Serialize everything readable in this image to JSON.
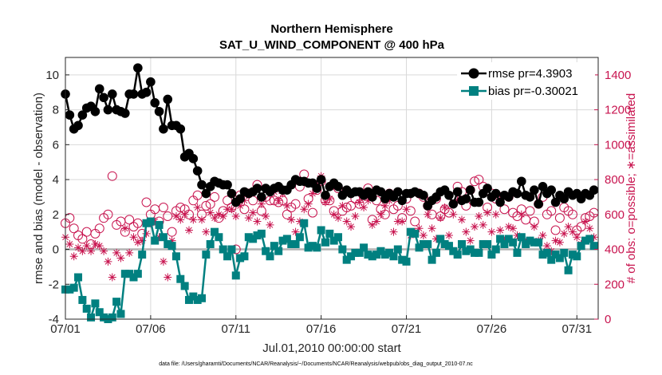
{
  "chart_data": {
    "type": "line",
    "title": "Northern Hemisphere",
    "subtitle": "SAT_U_WIND_COMPONENT @ 400 hPa",
    "xlabel": "Jul.01,2010 00:00:00 start",
    "ylabel_left": "rmse and bias (model - observation)",
    "ylabel_right": "# of obs: o=possible; ∗=assimilated",
    "footnote": "data file: /Users/gharamti/Documents/NCAR/Reanalysis/~/Documents/NCAR/Reanalysis/webpub/obs_diag_output_2010-07.nc",
    "x_tick_labels": [
      "07/01",
      "07/06",
      "07/11",
      "07/16",
      "07/21",
      "07/26",
      "07/31"
    ],
    "x_tick_days": [
      1,
      6,
      11,
      16,
      21,
      26,
      31
    ],
    "xlim": [
      1,
      32.25
    ],
    "ylim_left": [
      -4,
      11
    ],
    "left_ticks": [
      -4,
      -2,
      0,
      2,
      4,
      6,
      8,
      10
    ],
    "ylim_right": [
      0,
      1500
    ],
    "right_ticks": [
      0,
      200,
      400,
      600,
      800,
      1000,
      1200,
      1400
    ],
    "legend": [
      {
        "label": "rmse pr=4.3903",
        "series": "rmse"
      },
      {
        "label": "bias pr=-0.30021",
        "series": "bias"
      }
    ],
    "legend_placement": "top-right",
    "grid": true,
    "colors": {
      "rmse": "#000000",
      "bias": "#008080",
      "obs": "#c8144f",
      "zero_line": "#b3b3b3"
    },
    "x": [
      1.0,
      1.25,
      1.5,
      1.75,
      2.0,
      2.25,
      2.5,
      2.75,
      3.0,
      3.25,
      3.5,
      3.75,
      4.0,
      4.25,
      4.5,
      4.75,
      5.0,
      5.25,
      5.5,
      5.75,
      6.0,
      6.25,
      6.5,
      6.75,
      7.0,
      7.25,
      7.5,
      7.75,
      8.0,
      8.25,
      8.5,
      8.75,
      9.0,
      9.25,
      9.5,
      9.75,
      10.0,
      10.25,
      10.5,
      10.75,
      11.0,
      11.25,
      11.5,
      11.75,
      12.0,
      12.25,
      12.5,
      12.75,
      13.0,
      13.25,
      13.5,
      13.75,
      14.0,
      14.25,
      14.5,
      14.75,
      15.0,
      15.25,
      15.5,
      15.75,
      16.0,
      16.25,
      16.5,
      16.75,
      17.0,
      17.25,
      17.5,
      17.75,
      18.0,
      18.25,
      18.5,
      18.75,
      19.0,
      19.25,
      19.5,
      19.75,
      20.0,
      20.25,
      20.5,
      20.75,
      21.0,
      21.25,
      21.5,
      21.75,
      22.0,
      22.25,
      22.5,
      22.75,
      23.0,
      23.25,
      23.5,
      23.75,
      24.0,
      24.25,
      24.5,
      24.75,
      25.0,
      25.25,
      25.5,
      25.75,
      26.0,
      26.25,
      26.5,
      26.75,
      27.0,
      27.25,
      27.5,
      27.75,
      28.0,
      28.25,
      28.5,
      28.75,
      29.0,
      29.25,
      29.5,
      29.75,
      30.0,
      30.25,
      30.5,
      30.75,
      31.0,
      31.25,
      31.5,
      31.75,
      32.0
    ],
    "series": [
      {
        "name": "rmse",
        "axis": "left",
        "values": [
          8.9,
          7.7,
          6.9,
          7.1,
          7.7,
          8.1,
          8.2,
          7.9,
          9.2,
          8.7,
          8.0,
          8.9,
          8.0,
          7.9,
          7.8,
          8.9,
          8.9,
          10.4,
          8.9,
          9.0,
          9.6,
          8.4,
          7.9,
          6.9,
          8.6,
          7.1,
          7.1,
          6.9,
          5.3,
          5.5,
          5.2,
          4.5,
          3.7,
          3.2,
          3.6,
          3.9,
          3.8,
          3.7,
          3.7,
          3.2,
          2.7,
          2.9,
          3.3,
          3.2,
          3.3,
          3.5,
          3.0,
          3.5,
          3.3,
          3.5,
          3.6,
          3.4,
          3.4,
          3.7,
          4.0,
          3.9,
          3.9,
          3.8,
          3.8,
          3.5,
          4.0,
          3.1,
          3.6,
          3.8,
          3.6,
          3.1,
          3.4,
          3.2,
          3.3,
          3.3,
          3.1,
          3.3,
          3.0,
          3.4,
          3.3,
          2.9,
          3.2,
          3.0,
          3.3,
          2.8,
          3.2,
          3.2,
          3.3,
          3.2,
          3.1,
          2.5,
          2.8,
          3.0,
          3.3,
          3.4,
          3.1,
          2.6,
          3.3,
          2.8,
          2.9,
          3.4,
          2.7,
          2.7,
          3.2,
          3.5,
          3.0,
          3.2,
          2.7,
          3.1,
          3.0,
          3.3,
          3.2,
          3.9,
          3.1,
          3.0,
          3.4,
          2.6,
          3.6,
          3.2,
          3.4,
          2.7,
          3.1,
          2.9,
          3.3,
          3.1,
          3.2,
          2.9,
          3.2,
          3.1,
          3.4
        ]
      },
      {
        "name": "bias",
        "axis": "left",
        "values": [
          -2.3,
          -2.3,
          -2.2,
          -1.6,
          -2.9,
          -3.4,
          -3.9,
          -3.1,
          -3.6,
          -3.9,
          -4.0,
          -3.9,
          -3.0,
          -3.7,
          -1.4,
          -1.4,
          -1.6,
          -1.4,
          -0.3,
          1.5,
          1.6,
          0.5,
          1.4,
          0.7,
          0.3,
          0.2,
          -0.4,
          -1.7,
          -2.1,
          -2.9,
          -2.7,
          -2.9,
          -2.8,
          -0.3,
          0.3,
          1.0,
          0.7,
          0.0,
          -0.4,
          0.0,
          -1.5,
          -0.5,
          -0.4,
          0.7,
          0.6,
          0.8,
          0.9,
          -0.1,
          -0.4,
          0.2,
          -0.1,
          0.5,
          0.6,
          0.3,
          0.3,
          0.7,
          1.5,
          0.1,
          0.2,
          0.1,
          1.1,
          0.4,
          0.9,
          0.5,
          0.7,
          0.0,
          -0.6,
          -0.4,
          -0.2,
          -0.2,
          0.1,
          -0.3,
          -0.4,
          -0.3,
          -0.1,
          -0.3,
          -0.2,
          -0.4,
          0.0,
          -0.6,
          -0.7,
          1.0,
          0.9,
          0.1,
          0.3,
          0.3,
          -0.6,
          -0.2,
          0.6,
          0.3,
          0.2,
          -0.1,
          -0.3,
          0.3,
          -0.1,
          0.0,
          -0.2,
          -0.2,
          0.3,
          0.3,
          -0.3,
          0.0,
          0.6,
          0.3,
          0.6,
          0.4,
          -0.2,
          0.7,
          0.3,
          0.5,
          0.4,
          0.4,
          -0.3,
          -0.2,
          -0.6,
          -0.3,
          -0.5,
          -0.2,
          -1.2,
          -0.3,
          -0.4,
          0.2,
          0.5,
          0.6,
          0.2
        ]
      },
      {
        "name": "possible",
        "axis": "right",
        "marker": "circle",
        "values": [
          550,
          580,
          520,
          480,
          460,
          500,
          430,
          490,
          520,
          580,
          600,
          820,
          540,
          560,
          500,
          570,
          530,
          550,
          490,
          670,
          600,
          630,
          560,
          640,
          590,
          500,
          620,
          640,
          630,
          600,
          680,
          710,
          600,
          650,
          660,
          700,
          580,
          620,
          680,
          640,
          400,
          710,
          630,
          720,
          680,
          770,
          620,
          700,
          680,
          680,
          670,
          680,
          600,
          640,
          660,
          760,
          830,
          690,
          610,
          740,
          790,
          680,
          680,
          620,
          750,
          620,
          640,
          650,
          690,
          660,
          710,
          750,
          570,
          680,
          630,
          600,
          720,
          630,
          650,
          580,
          690,
          620,
          560,
          720,
          700,
          650,
          600,
          690,
          590,
          630,
          610,
          700,
          760,
          730,
          650,
          740,
          790,
          800,
          760,
          640,
          720,
          690,
          700,
          630,
          700,
          610,
          590,
          630,
          570,
          620,
          560,
          660,
          700,
          600,
          620,
          510,
          580,
          640,
          620,
          600,
          510,
          530,
          580,
          590,
          610
        ]
      },
      {
        "name": "assimilated",
        "axis": "right",
        "marker": "asterisk",
        "values": [
          470,
          430,
          360,
          410,
          390,
          420,
          390,
          430,
          420,
          390,
          330,
          240,
          380,
          350,
          520,
          380,
          470,
          440,
          450,
          490,
          550,
          560,
          470,
          330,
          240,
          450,
          590,
          570,
          600,
          510,
          570,
          640,
          570,
          500,
          610,
          580,
          600,
          590,
          630,
          630,
          590,
          650,
          680,
          580,
          610,
          560,
          660,
          590,
          540,
          730,
          680,
          720,
          650,
          570,
          500,
          560,
          630,
          660,
          720,
          770,
          820,
          670,
          690,
          600,
          580,
          650,
          560,
          530,
          590,
          670,
          640,
          680,
          540,
          560,
          600,
          650,
          680,
          500,
          560,
          560,
          630,
          480,
          500,
          520,
          480,
          600,
          520,
          460,
          580,
          640,
          480,
          600,
          680,
          570,
          500,
          450,
          530,
          590,
          540,
          610,
          500,
          600,
          510,
          450,
          530,
          520,
          480,
          600,
          440,
          450,
          530,
          450,
          480,
          420,
          390,
          450,
          440,
          490,
          530,
          500,
          470,
          430,
          560,
          520,
          470
        ]
      }
    ]
  }
}
